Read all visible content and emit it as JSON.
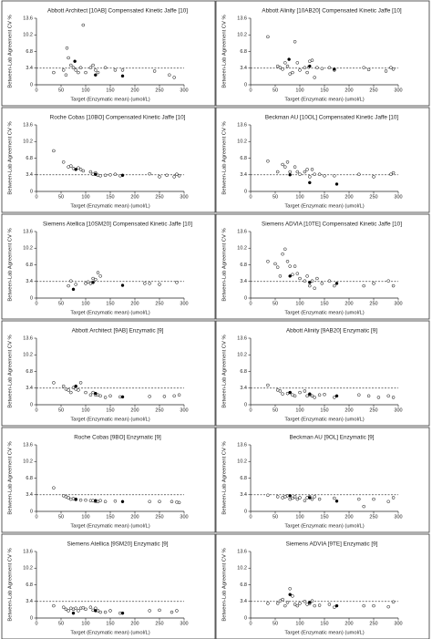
{
  "chart_data": [
    {
      "type": "scatter",
      "title": "Abbott Architect [10AB] Compensated Kinetic Jaffe [10]",
      "ylabel": "Between-Lab Agreement CV %",
      "xlabel": "Target (Enzymatic mean)   (umol/L)",
      "xlim": [
        0,
        300
      ],
      "ylim": [
        0,
        13.6
      ],
      "xticks": [
        0,
        50,
        100,
        150,
        200,
        250,
        300
      ],
      "yticks": [
        0,
        3.4,
        6.8,
        10.2,
        13.6
      ],
      "reference_line": 3.4,
      "color": "#000000",
      "series": [
        {
          "marker": "open",
          "x": [
            35,
            55,
            60,
            62,
            65,
            70,
            75,
            80,
            85,
            90,
            95,
            100,
            110,
            115,
            120,
            125,
            140,
            160,
            175,
            240,
            270,
            280
          ],
          "y": [
            2.5,
            3,
            2,
            7.5,
            5.5,
            4,
            3.5,
            3,
            2.5,
            3.5,
            12.2,
            2.5,
            3.5,
            4,
            3,
            2.5,
            3.5,
            3,
            3,
            2.8,
            2,
            1.5
          ]
        },
        {
          "marker": "filled",
          "x": [
            78,
            120,
            175
          ],
          "y": [
            4.8,
            2,
            1.8
          ]
        }
      ]
    },
    {
      "type": "scatter",
      "title": "Abbott Alinity [10AB20] Compensated Kinetic Jaffe [10]",
      "ylabel": "Between-Lab Agreement CV %",
      "xlabel": "Target (Enzymatic mean)   (umol/L)",
      "xlim": [
        0,
        300
      ],
      "ylim": [
        0,
        13.6
      ],
      "xticks": [
        0,
        50,
        100,
        150,
        200,
        250,
        300
      ],
      "yticks": [
        0,
        3.4,
        6.8,
        10.2,
        13.6
      ],
      "reference_line": 3.4,
      "color": "#000000",
      "series": [
        {
          "marker": "open",
          "x": [
            35,
            55,
            60,
            65,
            70,
            75,
            80,
            85,
            90,
            95,
            100,
            110,
            115,
            118,
            120,
            125,
            130,
            135,
            145,
            160,
            170,
            230,
            240,
            275,
            285,
            290
          ],
          "y": [
            9.8,
            3.8,
            3.5,
            3.2,
            4.5,
            3.8,
            2.2,
            2.5,
            8.8,
            4.5,
            3,
            3.5,
            2.5,
            3.6,
            4.8,
            5,
            1.5,
            3.5,
            3.3,
            3.5,
            3,
            3.5,
            3.1,
            2.8,
            3.5,
            3.2
          ]
        },
        {
          "marker": "filled",
          "x": [
            78,
            120,
            170
          ],
          "y": [
            5.2,
            3.8,
            3.2
          ]
        }
      ]
    },
    {
      "type": "scatter",
      "title": "Roche Cobas [10BO] Compensated Kinetic Jaffe [10]",
      "ylabel": "Between-Lab Agreement CV %",
      "xlabel": "Target (Enzymatic mean)   (umol/L)",
      "xlim": [
        0,
        300
      ],
      "ylim": [
        0,
        13.6
      ],
      "xticks": [
        0,
        50,
        100,
        150,
        200,
        250,
        300
      ],
      "yticks": [
        0,
        3.4,
        6.8,
        10.2,
        13.6
      ],
      "reference_line": 3.4,
      "color": "#000000",
      "series": [
        {
          "marker": "open",
          "x": [
            35,
            55,
            65,
            70,
            75,
            85,
            90,
            95,
            110,
            115,
            120,
            125,
            130,
            140,
            150,
            160,
            170,
            230,
            250,
            265,
            280,
            285,
            290
          ],
          "y": [
            8.3,
            6,
            5,
            5.2,
            4.7,
            4.8,
            4.5,
            4.2,
            4,
            3.5,
            3.8,
            3.3,
            3.2,
            3.3,
            3.4,
            3.5,
            3.2,
            3.6,
            3,
            3.3,
            3,
            3.5,
            3.2
          ]
        },
        {
          "marker": "filled",
          "x": [
            80,
            120,
            175
          ],
          "y": [
            4.5,
            3.5,
            3.3
          ]
        }
      ]
    },
    {
      "type": "scatter",
      "title": "Beckman AU [10OL] Compensated Kinetic Jaffe [10]",
      "ylabel": "Between-Lab Agreement CV %",
      "xlabel": "Target (Enzymatic mean)   (umol/L)",
      "xlim": [
        0,
        300
      ],
      "ylim": [
        0,
        13.6
      ],
      "xticks": [
        0,
        50,
        100,
        150,
        200,
        250,
        300
      ],
      "yticks": [
        0,
        3.4,
        6.8,
        10.2,
        13.6
      ],
      "reference_line": 3.4,
      "color": "#000000",
      "series": [
        {
          "marker": "open",
          "x": [
            35,
            55,
            65,
            70,
            75,
            80,
            90,
            95,
            100,
            110,
            115,
            120,
            125,
            130,
            140,
            150,
            170,
            220,
            250,
            285,
            290
          ],
          "y": [
            6.2,
            4,
            5.5,
            5,
            6,
            4,
            5,
            4,
            3.5,
            4,
            4.5,
            3,
            4.5,
            3.5,
            3.5,
            3.2,
            3.2,
            3.5,
            3,
            3.5,
            3.8
          ]
        },
        {
          "marker": "filled",
          "x": [
            80,
            120,
            175
          ],
          "y": [
            3.4,
            1.8,
            1.5
          ]
        }
      ]
    },
    {
      "type": "scatter",
      "title": "Siemens Atellica [10SM20] Compensated Kinetic Jaffe [10]",
      "ylabel": "Between-Lab Agreement CV %",
      "xlabel": "Target (Enzymatic mean)   (umol/L)",
      "xlim": [
        0,
        300
      ],
      "ylim": [
        0,
        13.6
      ],
      "xticks": [
        0,
        50,
        100,
        150,
        200,
        250,
        300
      ],
      "yticks": [
        0,
        3.4,
        6.8,
        10.2,
        13.6
      ],
      "reference_line": 3.4,
      "color": "#000000",
      "series": [
        {
          "marker": "open",
          "x": [
            65,
            70,
            80,
            100,
            105,
            110,
            115,
            120,
            125,
            130,
            220,
            230,
            250,
            285
          ],
          "y": [
            2.5,
            3.5,
            2.8,
            3,
            3.3,
            3,
            4,
            3.8,
            5.2,
            4.5,
            3,
            3,
            2.8,
            3.2
          ]
        },
        {
          "marker": "filled",
          "x": [
            75,
            115,
            175
          ],
          "y": [
            1.8,
            3.2,
            2.6
          ]
        }
      ]
    },
    {
      "type": "scatter",
      "title": "Siemens ADVIA [10TE] Compensated Kinetic Jaffe [10]",
      "ylabel": "Between-Lab Agreement CV %",
      "xlabel": "Target (Enzymatic mean)   (umol/L)",
      "xlim": [
        0,
        300
      ],
      "ylim": [
        0,
        13.6
      ],
      "xticks": [
        0,
        50,
        100,
        150,
        200,
        250,
        300
      ],
      "yticks": [
        0,
        3.4,
        6.8,
        10.2,
        13.6
      ],
      "reference_line": 3.4,
      "color": "#000000",
      "series": [
        {
          "marker": "open",
          "x": [
            35,
            50,
            55,
            60,
            65,
            70,
            75,
            80,
            85,
            90,
            95,
            100,
            110,
            115,
            120,
            125,
            130,
            135,
            145,
            160,
            170,
            230,
            250,
            280,
            290
          ],
          "y": [
            7.5,
            7,
            6.3,
            4.5,
            9,
            10,
            7.5,
            6.5,
            4.8,
            6.5,
            5,
            4,
            3.5,
            4.5,
            2.5,
            3.5,
            2,
            4,
            3,
            3.5,
            2.5,
            2.5,
            3,
            3.5,
            2.5
          ]
        },
        {
          "marker": "filled",
          "x": [
            80,
            120,
            175
          ],
          "y": [
            4.5,
            3.2,
            3
          ]
        }
      ]
    },
    {
      "type": "scatter",
      "title": "Abbott Architect [9AB] Enzymatic [9]",
      "ylabel": "Between-Lab Agreement CV %",
      "xlabel": "Target (Enzymatic mean)   (umol/L)",
      "xlim": [
        0,
        300
      ],
      "ylim": [
        0,
        13.6
      ],
      "xticks": [
        0,
        50,
        100,
        150,
        200,
        250,
        300
      ],
      "yticks": [
        0,
        3.4,
        6.8,
        10.2,
        13.6
      ],
      "reference_line": 3.4,
      "color": "#000000",
      "series": [
        {
          "marker": "open",
          "x": [
            35,
            55,
            60,
            65,
            70,
            75,
            80,
            85,
            90,
            100,
            110,
            115,
            120,
            125,
            130,
            140,
            150,
            170,
            230,
            260,
            280,
            290
          ],
          "y": [
            4.5,
            3.8,
            3.2,
            3,
            2.5,
            3.5,
            3.2,
            3,
            4.5,
            2.5,
            2,
            2.5,
            2,
            2,
            1.8,
            1.5,
            1.8,
            1.6,
            1.7,
            1.7,
            1.8,
            2
          ]
        },
        {
          "marker": "filled",
          "x": [
            80,
            120,
            175
          ],
          "y": [
            3.8,
            2.3,
            1.6
          ]
        }
      ]
    },
    {
      "type": "scatter",
      "title": "Abbott Alinity [9AB20] Enzymatic [9]",
      "ylabel": "Between-Lab Agreement CV %",
      "xlabel": "Target (Enzymatic mean)   (umol/L)",
      "xlim": [
        0,
        300
      ],
      "ylim": [
        0,
        13.6
      ],
      "xticks": [
        0,
        50,
        100,
        150,
        200,
        250,
        300
      ],
      "yticks": [
        0,
        3.4,
        6.8,
        10.2,
        13.6
      ],
      "reference_line": 3.4,
      "color": "#000000",
      "series": [
        {
          "marker": "open",
          "x": [
            35,
            55,
            60,
            65,
            75,
            80,
            85,
            90,
            100,
            110,
            115,
            120,
            125,
            130,
            140,
            150,
            170,
            220,
            240,
            260,
            280,
            290
          ],
          "y": [
            4,
            3,
            2.8,
            2.2,
            2.3,
            2.5,
            2,
            1.8,
            2.5,
            2.8,
            1.8,
            2,
            1.8,
            1.5,
            2,
            2.1,
            1.5,
            2,
            1.8,
            1.5,
            1.8,
            1.5
          ]
        },
        {
          "marker": "filled",
          "x": [
            80,
            120,
            175
          ],
          "y": [
            2.5,
            2.2,
            1.8
          ]
        }
      ]
    },
    {
      "type": "scatter",
      "title": "Roche Cobas [9BO] Enzymatic [9]",
      "ylabel": "Between-Lab Agreement CV %",
      "xlabel": "Target (Enzymatic mean)   (umol/L)",
      "xlim": [
        0,
        300
      ],
      "ylim": [
        0,
        13.6
      ],
      "xticks": [
        0,
        50,
        100,
        150,
        200,
        250,
        300
      ],
      "yticks": [
        0,
        3.4,
        6.8,
        10.2,
        13.6
      ],
      "reference_line": 3.4,
      "color": "#000000",
      "series": [
        {
          "marker": "open",
          "x": [
            35,
            55,
            60,
            65,
            70,
            75,
            80,
            90,
            100,
            110,
            115,
            120,
            125,
            130,
            140,
            160,
            230,
            250,
            275,
            285,
            290
          ],
          "y": [
            4.8,
            3.2,
            3,
            2.8,
            2.5,
            2.6,
            2.4,
            2.3,
            2.3,
            2.2,
            2.2,
            2,
            2,
            2.2,
            2,
            2.1,
            2,
            2,
            2,
            1.9,
            1.8
          ]
        },
        {
          "marker": "filled",
          "x": [
            80,
            120,
            175
          ],
          "y": [
            2.5,
            2.2,
            2
          ]
        }
      ]
    },
    {
      "type": "scatter",
      "title": "Beckman AU [9OL] Enzymatic [9]",
      "ylabel": "Between-Lab Agreement CV %",
      "xlabel": "Target (Enzymatic mean)   (umol/L)",
      "xlim": [
        0,
        300
      ],
      "ylim": [
        0,
        13.6
      ],
      "xticks": [
        0,
        50,
        100,
        150,
        200,
        250,
        300
      ],
      "yticks": [
        0,
        3.4,
        6.8,
        10.2,
        13.6
      ],
      "reference_line": 3.4,
      "color": "#000000",
      "series": [
        {
          "marker": "open",
          "x": [
            35,
            55,
            65,
            70,
            75,
            80,
            85,
            90,
            95,
            100,
            110,
            115,
            120,
            125,
            130,
            140,
            170,
            220,
            230,
            250,
            280,
            290
          ],
          "y": [
            3.3,
            3,
            2.8,
            3,
            3.2,
            2.5,
            2.7,
            3,
            2.5,
            2.8,
            2.2,
            2.8,
            3,
            2.5,
            3,
            2.5,
            2.7,
            2.5,
            1,
            2.5,
            2,
            2.8
          ]
        },
        {
          "marker": "filled",
          "x": [
            80,
            120,
            175
          ],
          "y": [
            3.2,
            2.8,
            2.1
          ]
        }
      ]
    },
    {
      "type": "scatter",
      "title": "Siemens Atellica [9SM20] Enzymatic [9]",
      "ylabel": "Between-Lab Agreement CV %",
      "xlabel": "Target (Enzymatic mean)   (umol/L)",
      "xlim": [
        0,
        300
      ],
      "ylim": [
        0,
        13.6
      ],
      "xticks": [
        0,
        50,
        100,
        150,
        200,
        250,
        300
      ],
      "yticks": [
        0,
        3.4,
        6.8,
        10.2,
        13.6
      ],
      "reference_line": 3.4,
      "color": "#000000",
      "series": [
        {
          "marker": "open",
          "x": [
            35,
            55,
            60,
            65,
            70,
            75,
            80,
            85,
            90,
            95,
            100,
            110,
            115,
            120,
            125,
            130,
            140,
            150,
            170,
            230,
            250,
            275,
            285
          ],
          "y": [
            2.5,
            2.2,
            1.8,
            1.5,
            2,
            1.8,
            2,
            1.5,
            2,
            2.1,
            1.8,
            2.2,
            1.6,
            2,
            1.5,
            1.2,
            1.2,
            1.5,
            1,
            1.5,
            1.6,
            1.2,
            1.5
          ]
        },
        {
          "marker": "filled",
          "x": [
            75,
            120,
            175
          ],
          "y": [
            1,
            1.5,
            1
          ]
        }
      ]
    },
    {
      "type": "scatter",
      "title": "Siemens ADVIA [9TE] Enzymatic [9]",
      "ylabel": "Between-Lab Agreement CV %",
      "xlabel": "Target (Enzymatic mean)   (umol/L)",
      "xlim": [
        0,
        300
      ],
      "ylim": [
        0,
        13.6
      ],
      "xticks": [
        0,
        50,
        100,
        150,
        200,
        250,
        300
      ],
      "yticks": [
        0,
        3.4,
        6.8,
        10.2,
        13.6
      ],
      "reference_line": 3.4,
      "color": "#000000",
      "series": [
        {
          "marker": "open",
          "x": [
            35,
            55,
            60,
            65,
            70,
            75,
            80,
            85,
            90,
            95,
            100,
            110,
            115,
            120,
            125,
            130,
            140,
            160,
            170,
            230,
            250,
            280,
            290
          ],
          "y": [
            3,
            3,
            3.5,
            3.8,
            2.5,
            3.2,
            6,
            4.5,
            2.8,
            2.5,
            3,
            3.4,
            2.8,
            3,
            3.5,
            2.5,
            2.6,
            2.8,
            2.2,
            2.5,
            2.5,
            2.3,
            3.3
          ]
        },
        {
          "marker": "filled",
          "x": [
            80,
            120,
            175
          ],
          "y": [
            4.8,
            3.2,
            2.5
          ]
        }
      ]
    }
  ]
}
